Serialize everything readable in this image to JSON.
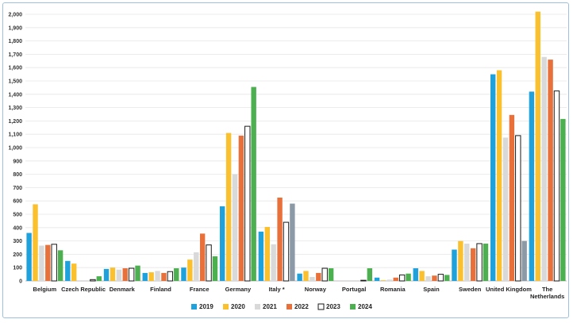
{
  "chart_data": {
    "type": "bar",
    "title": "",
    "xlabel": "",
    "ylabel": "",
    "ylim": [
      0,
      2000
    ],
    "yticks": [
      0,
      100,
      200,
      300,
      400,
      500,
      600,
      700,
      800,
      900,
      1000,
      1100,
      1200,
      1300,
      1400,
      1500,
      1600,
      1700,
      1800,
      1900,
      2000
    ],
    "ytick_labels": [
      "0",
      "100",
      "200",
      "300",
      "400",
      "500",
      "600",
      "700",
      "800",
      "900",
      "1,000",
      "1,100",
      "1,200",
      "1,300",
      "1,400",
      "1,500",
      "1,600",
      "1,700",
      "1,800",
      "1,900",
      "2,000"
    ],
    "grid": true,
    "legend_position": "bottom",
    "categories": [
      [
        "Belgium"
      ],
      [
        "Czech Republic"
      ],
      [
        "Denmark"
      ],
      [
        "Finland"
      ],
      [
        "France"
      ],
      [
        "Germany"
      ],
      [
        "Italy *"
      ],
      [
        "Norway"
      ],
      [
        "Portugal"
      ],
      [
        "Romania"
      ],
      [
        "Spain"
      ],
      [
        "Sweden"
      ],
      [
        "United Kingdom"
      ],
      [
        "The",
        "Netherlands"
      ]
    ],
    "series": [
      {
        "name": "2019",
        "color": "#1fa1db",
        "outline": false,
        "values": [
          360,
          150,
          90,
          60,
          100,
          560,
          370,
          55,
          0,
          25,
          95,
          235,
          1550,
          1420
        ]
      },
      {
        "name": "2020",
        "color": "#fbc02d",
        "outline": false,
        "values": [
          575,
          130,
          100,
          65,
          160,
          1110,
          405,
          75,
          0,
          5,
          75,
          300,
          1580,
          2020
        ]
      },
      {
        "name": "2021",
        "color": "#d9d9d9",
        "outline": false,
        "values": [
          265,
          0,
          85,
          75,
          215,
          800,
          275,
          30,
          0,
          10,
          35,
          280,
          1075,
          1680
        ]
      },
      {
        "name": "2022",
        "color": "#e8703a",
        "outline": false,
        "values": [
          270,
          0,
          95,
          60,
          355,
          1090,
          625,
          60,
          0,
          25,
          40,
          245,
          1245,
          1660
        ]
      },
      {
        "name": "2023",
        "color": "#ffffff",
        "outline": true,
        "values": [
          275,
          10,
          95,
          70,
          270,
          1160,
          440,
          95,
          5,
          45,
          50,
          280,
          1090,
          1425
        ]
      },
      {
        "name": "2024",
        "color": "#4caf50",
        "outline": false,
        "values": [
          230,
          35,
          115,
          95,
          185,
          1455,
          null,
          95,
          95,
          55,
          45,
          280,
          null,
          1215
        ]
      }
    ],
    "extra_bars": [
      {
        "category_index": 6,
        "value": 580,
        "color": "#8c9aa8"
      },
      {
        "category_index": 12,
        "value": 300,
        "color": "#8c9aa8"
      }
    ]
  }
}
